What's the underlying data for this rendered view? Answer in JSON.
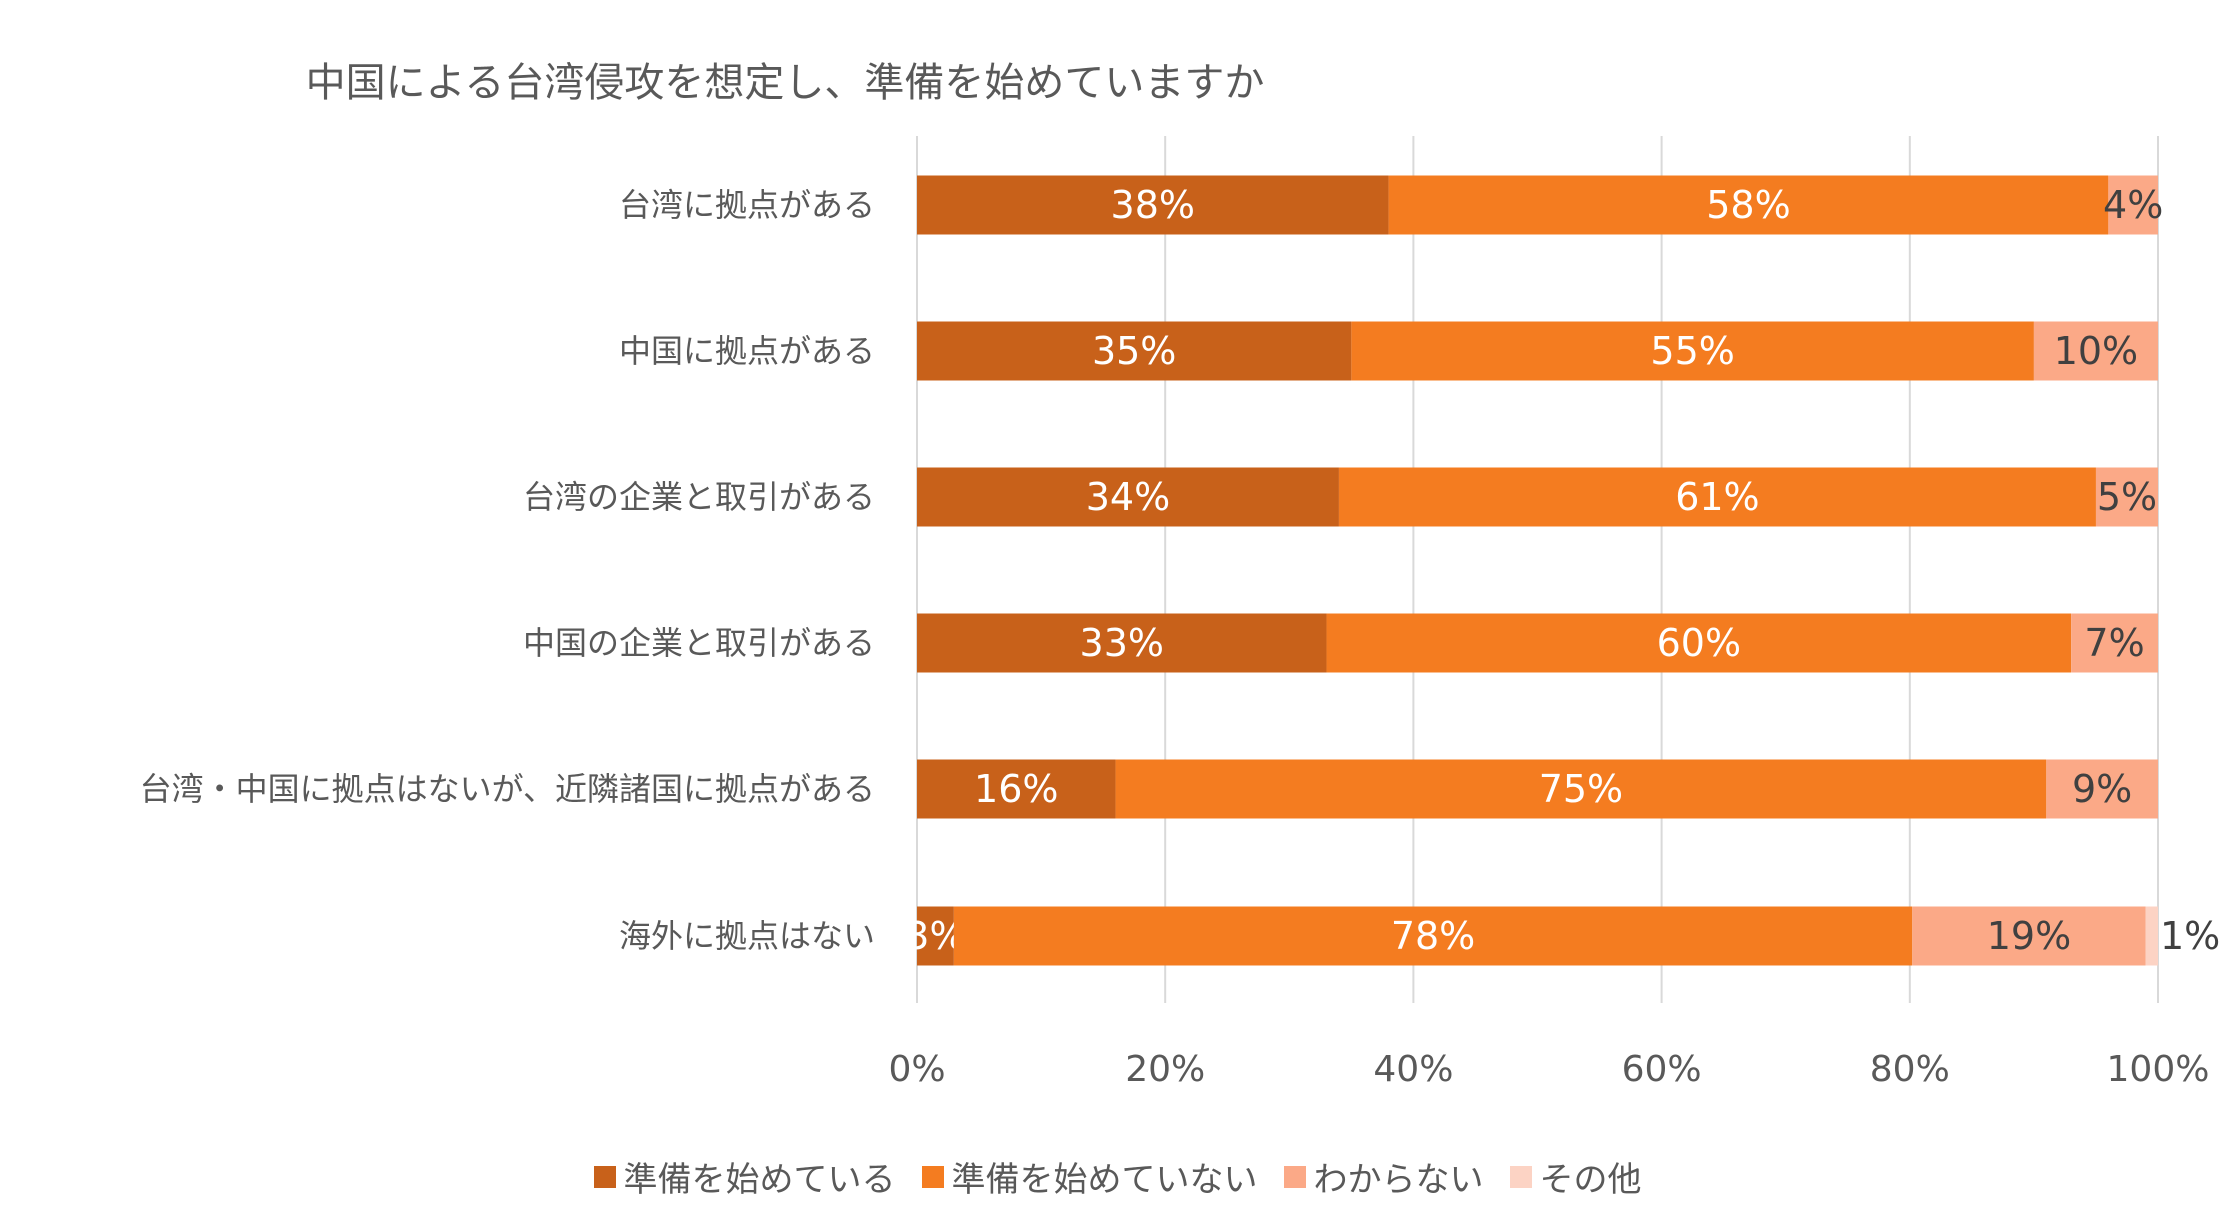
{
  "chart_data": {
    "type": "bar",
    "orientation": "horizontal",
    "stacked": "100%",
    "title": "中国による台湾侵攻を想定し、準備を始めていますか",
    "categories": [
      "台湾に拠点がある",
      "中国に拠点がある",
      "台湾の企業と取引がある",
      "中国の企業と取引がある",
      "台湾・中国に拠点はないが、近隣諸国に拠点がある",
      "海外に拠点はない"
    ],
    "series": [
      {
        "name": "準備を始めている",
        "color": "#C8611A",
        "values": [
          38,
          35,
          34,
          33,
          16,
          3
        ]
      },
      {
        "name": "準備を始めていない",
        "color": "#F47C20",
        "values": [
          58,
          55,
          61,
          60,
          75,
          78
        ]
      },
      {
        "name": "わからない",
        "color": "#FBA987",
        "values": [
          4,
          10,
          5,
          7,
          9,
          19
        ]
      },
      {
        "name": "その他",
        "color": "#FCD3C4",
        "values": [
          0,
          0,
          0,
          0,
          0,
          1
        ]
      }
    ],
    "data_label_suffix": "%",
    "xlim": [
      0,
      100
    ],
    "x_ticks": [
      "0%",
      "20%",
      "40%",
      "60%",
      "80%",
      "100%"
    ],
    "grid": "vertical",
    "legend": "bottom"
  }
}
